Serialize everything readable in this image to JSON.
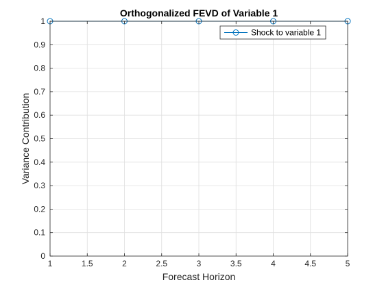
{
  "chart_data": {
    "type": "line",
    "title": "Orthogonalized FEVD of Variable 1",
    "xlabel": "Forecast Horizon",
    "ylabel": "Variance Contribution",
    "xlim": [
      1,
      5
    ],
    "ylim": [
      0,
      1
    ],
    "xticks": [
      1,
      1.5,
      2,
      2.5,
      3,
      3.5,
      4,
      4.5,
      5
    ],
    "xtick_labels": [
      "1",
      "1.5",
      "2",
      "2.5",
      "3",
      "3.5",
      "4",
      "4.5",
      "5"
    ],
    "yticks": [
      0,
      0.1,
      0.2,
      0.3,
      0.4,
      0.5,
      0.6,
      0.7,
      0.8,
      0.9,
      1
    ],
    "ytick_labels": [
      "0",
      "0.1",
      "0.2",
      "0.3",
      "0.4",
      "0.5",
      "0.6",
      "0.7",
      "0.8",
      "0.9",
      "1"
    ],
    "grid": true,
    "legend_position": "top-right",
    "series": [
      {
        "name": "Shock to variable 1",
        "color": "#0072bd",
        "marker": "circle",
        "x": [
          1,
          2,
          3,
          4,
          5
        ],
        "y": [
          1,
          1,
          1,
          1,
          1
        ]
      }
    ]
  }
}
